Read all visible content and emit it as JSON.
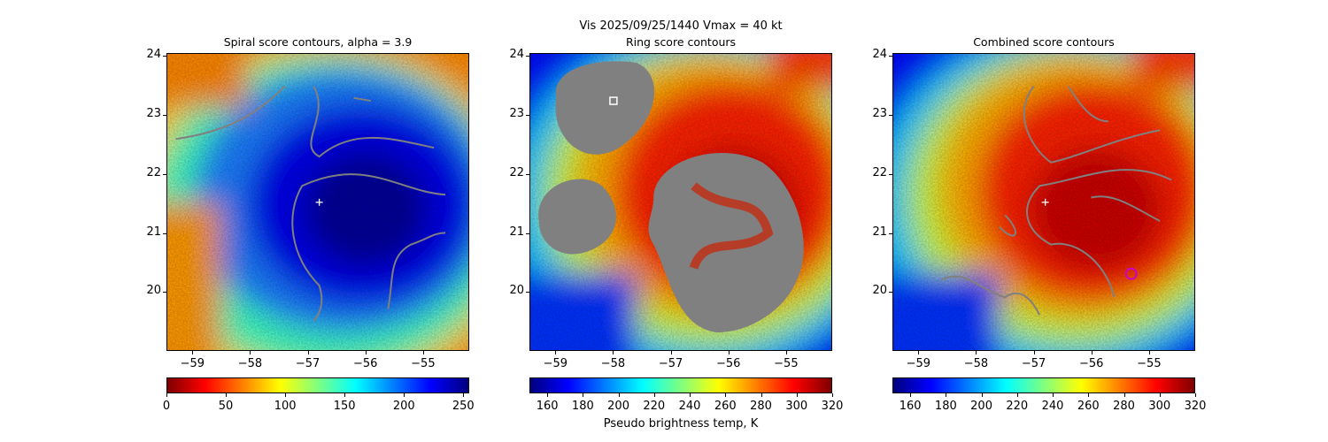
{
  "figure": {
    "suptitle": "Vis  2025/09/25/1440    Vmax = 40 kt",
    "colorbar_label": "Pseudo brightness temp, K"
  },
  "chart_data": [
    {
      "type": "heatmap",
      "title": "Spiral score contours, alpha =  3.9",
      "xlabel": "",
      "ylabel": "",
      "xlim": [
        -59.45,
        -54.2
      ],
      "ylim": [
        19.0,
        24.05
      ],
      "x_ticks": [
        -59,
        -58,
        -57,
        -56,
        -55
      ],
      "y_ticks": [
        20,
        21,
        22,
        23,
        24
      ],
      "colormap": "jet_r",
      "colorbar": {
        "range": [
          0,
          255
        ],
        "ticks": [
          0,
          50,
          100,
          150,
          200,
          250
        ]
      },
      "center_marker": {
        "type": "plus",
        "x": -56.8,
        "y": 21.52,
        "color": "#ffffff"
      },
      "contour_color": "#808080"
    },
    {
      "type": "heatmap",
      "title": "Ring score contours",
      "xlabel": "",
      "ylabel": "",
      "xlim": [
        -59.45,
        -54.2
      ],
      "ylim": [
        19.0,
        24.05
      ],
      "x_ticks": [
        -59,
        -58,
        -57,
        -56,
        -55
      ],
      "y_ticks": [
        20,
        21,
        22,
        23,
        24
      ],
      "colormap": "jet",
      "colorbar": {
        "range": [
          150,
          320
        ],
        "ticks": [
          160,
          180,
          200,
          220,
          240,
          260,
          280,
          300,
          320
        ]
      },
      "center_marker": {
        "type": "square",
        "x": -58.0,
        "y": 23.25,
        "color": "#ffffff"
      },
      "contour_color": "#808080"
    },
    {
      "type": "heatmap",
      "title": "Combined score contours",
      "xlabel": "",
      "ylabel": "",
      "xlim": [
        -59.45,
        -54.2
      ],
      "ylim": [
        19.0,
        24.05
      ],
      "x_ticks": [
        -59,
        -58,
        -57,
        -56,
        -55
      ],
      "y_ticks": [
        20,
        21,
        22,
        23,
        24
      ],
      "colormap": "jet",
      "colorbar": {
        "range": [
          150,
          320
        ],
        "ticks": [
          160,
          180,
          200,
          220,
          240,
          260,
          280,
          300,
          320
        ]
      },
      "center_marker": {
        "type": "plus",
        "x": -56.8,
        "y": 21.52,
        "color": "#ffffff"
      },
      "best_marker": {
        "type": "circle",
        "x": -55.3,
        "y": 20.3,
        "color": "#cc00cc"
      },
      "contour_color": "#808080"
    }
  ]
}
